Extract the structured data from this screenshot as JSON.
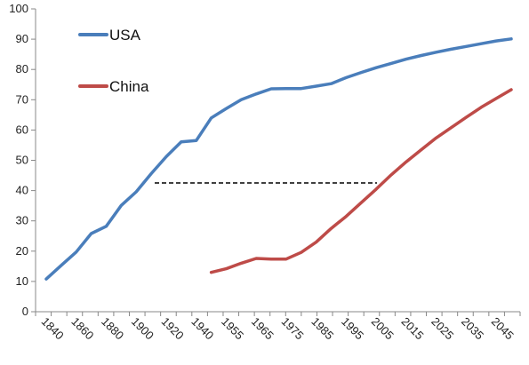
{
  "chart_data": {
    "type": "line",
    "title": "",
    "xlabel": "",
    "ylabel": "",
    "ylim": [
      0,
      100
    ],
    "yticks": [
      0,
      10,
      20,
      30,
      40,
      50,
      60,
      70,
      80,
      90,
      100
    ],
    "xticks": [
      "1840",
      "1860",
      "1880",
      "1900",
      "1920",
      "1940",
      "1955",
      "1965",
      "1975",
      "1985",
      "1995",
      "2005",
      "2015",
      "2025",
      "2035",
      "2045"
    ],
    "grid": false,
    "legend_position": "top-left",
    "series": [
      {
        "name": "USA",
        "color": "#4a7ebb",
        "values": [
          10.8,
          15.3,
          19.7,
          25.8,
          28.2,
          35.1,
          39.6,
          45.6,
          51.2,
          56.1,
          56.5,
          64.0,
          67.1,
          70.0,
          71.9,
          73.6,
          73.7,
          73.7,
          74.5,
          75.3,
          77.3,
          79.0,
          80.6,
          82.0,
          83.4,
          84.6,
          85.7,
          86.7,
          87.6,
          88.5,
          89.4,
          90.1
        ]
      },
      {
        "name": "China",
        "color": "#be4b48",
        "values": [
          null,
          null,
          null,
          null,
          null,
          null,
          null,
          null,
          null,
          null,
          null,
          13.0,
          14.2,
          16.0,
          17.6,
          17.4,
          17.4,
          19.6,
          23.0,
          27.5,
          31.5,
          36.0,
          40.5,
          45.2,
          49.5,
          53.5,
          57.4,
          60.8,
          64.2,
          67.5,
          70.4,
          73.3
        ]
      }
    ]
  }
}
